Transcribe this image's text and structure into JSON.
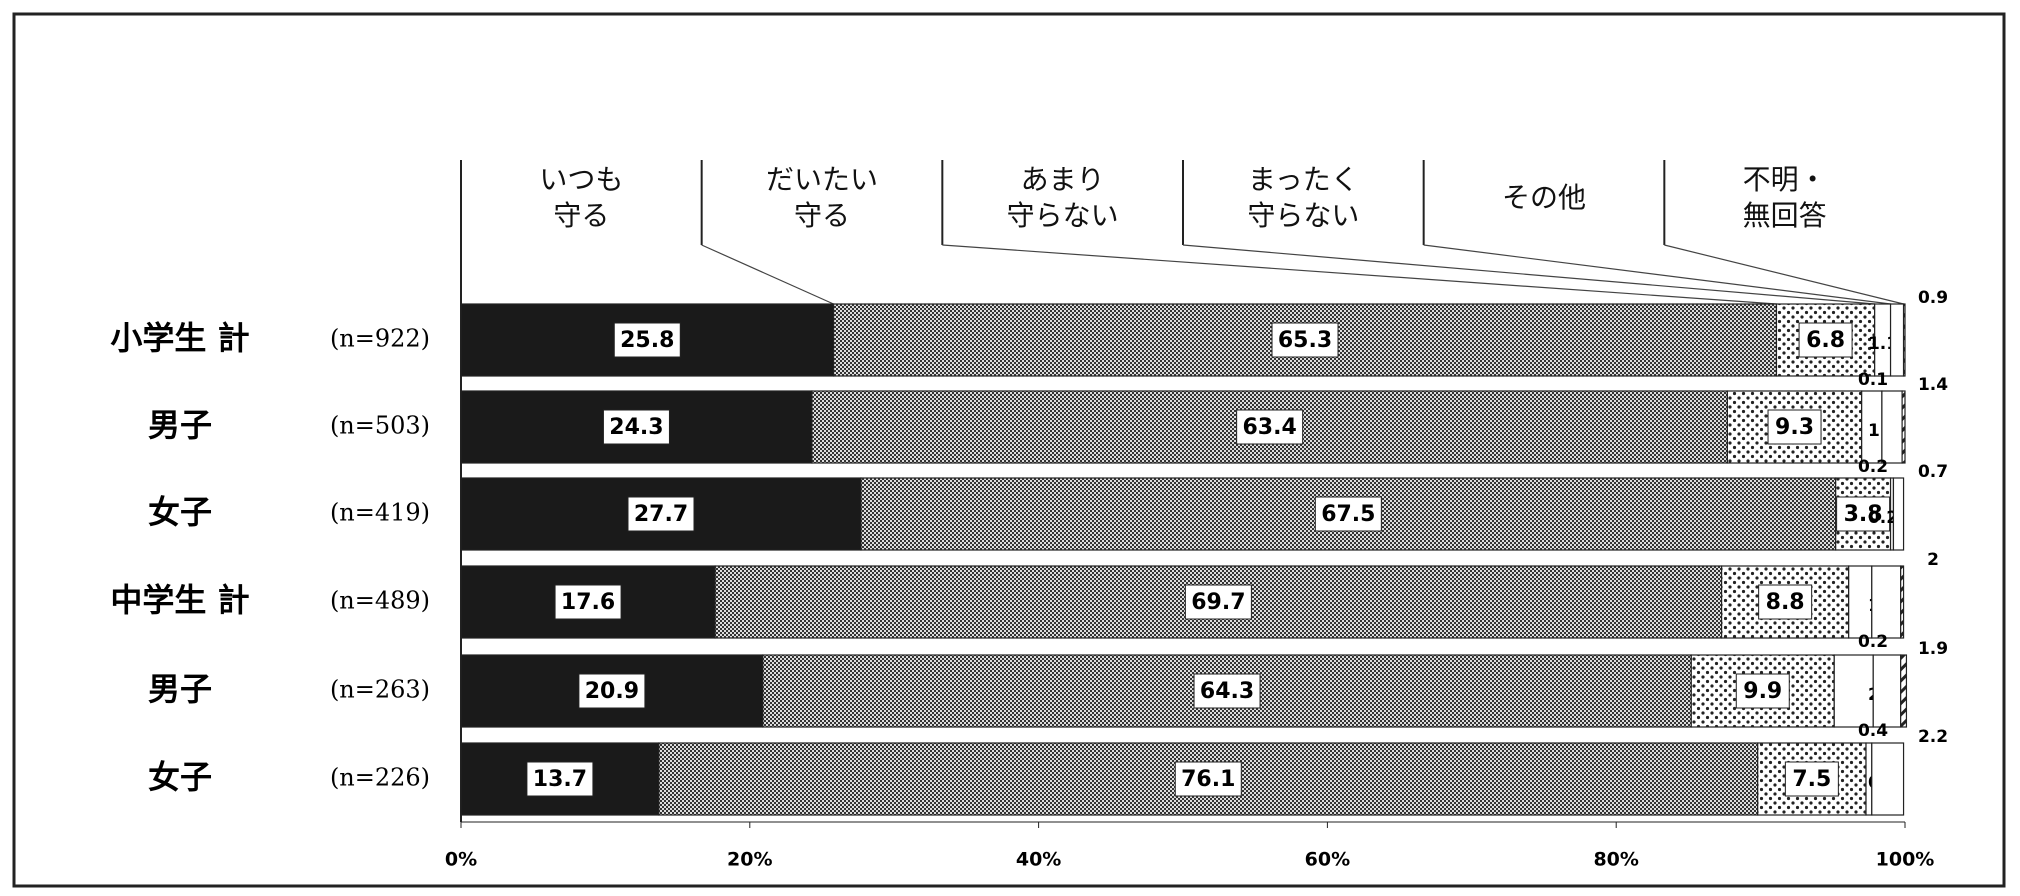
{
  "chart_data": {
    "type": "stacked-bar-horizontal",
    "categories": [
      "小学生 計",
      "男子",
      "女子",
      "中学生 計",
      "男子",
      "女子"
    ],
    "n_labels": [
      "(n=922)",
      "(n=503)",
      "(n=419)",
      "(n=489)",
      "(n=263)",
      "(n=226)"
    ],
    "series": [
      {
        "name": "いつも\n守る",
        "color": "#1a1a1a",
        "pattern": "solid",
        "values": [
          25.8,
          24.3,
          27.7,
          17.6,
          20.9,
          13.7
        ]
      },
      {
        "name": "だいたい\n守る",
        "color": "#555555",
        "pattern": "checker",
        "values": [
          65.3,
          63.4,
          67.5,
          69.7,
          64.3,
          76.1
        ]
      },
      {
        "name": "あまり\n守らない",
        "color": "#333333",
        "pattern": "dots",
        "values": [
          6.8,
          9.3,
          3.8,
          8.8,
          9.9,
          7.5
        ]
      },
      {
        "name": "まったく\n守らない",
        "color": "#ffffff",
        "pattern": "none",
        "values": [
          1.1,
          1.4,
          0.2,
          1.6,
          2.7,
          0.4
        ]
      },
      {
        "name": "その他",
        "color": "#ffffff",
        "pattern": "none",
        "values": [
          0.9,
          1.4,
          0.7,
          2.0,
          1.9,
          2.2
        ]
      },
      {
        "name": "不明・\n無回答",
        "color": "#222222",
        "pattern": "hatch",
        "values": [
          0.1,
          0.2,
          null,
          0.2,
          0.4,
          null
        ]
      }
    ],
    "xlim": [
      0,
      100
    ],
    "xticks": [
      {
        "value": 0,
        "label": "0%"
      },
      {
        "value": 20,
        "label": "20%"
      },
      {
        "value": 40,
        "label": "40%"
      },
      {
        "value": 60,
        "label": "60%"
      },
      {
        "value": 80,
        "label": "80%"
      },
      {
        "value": 100,
        "label": "100%"
      }
    ]
  }
}
